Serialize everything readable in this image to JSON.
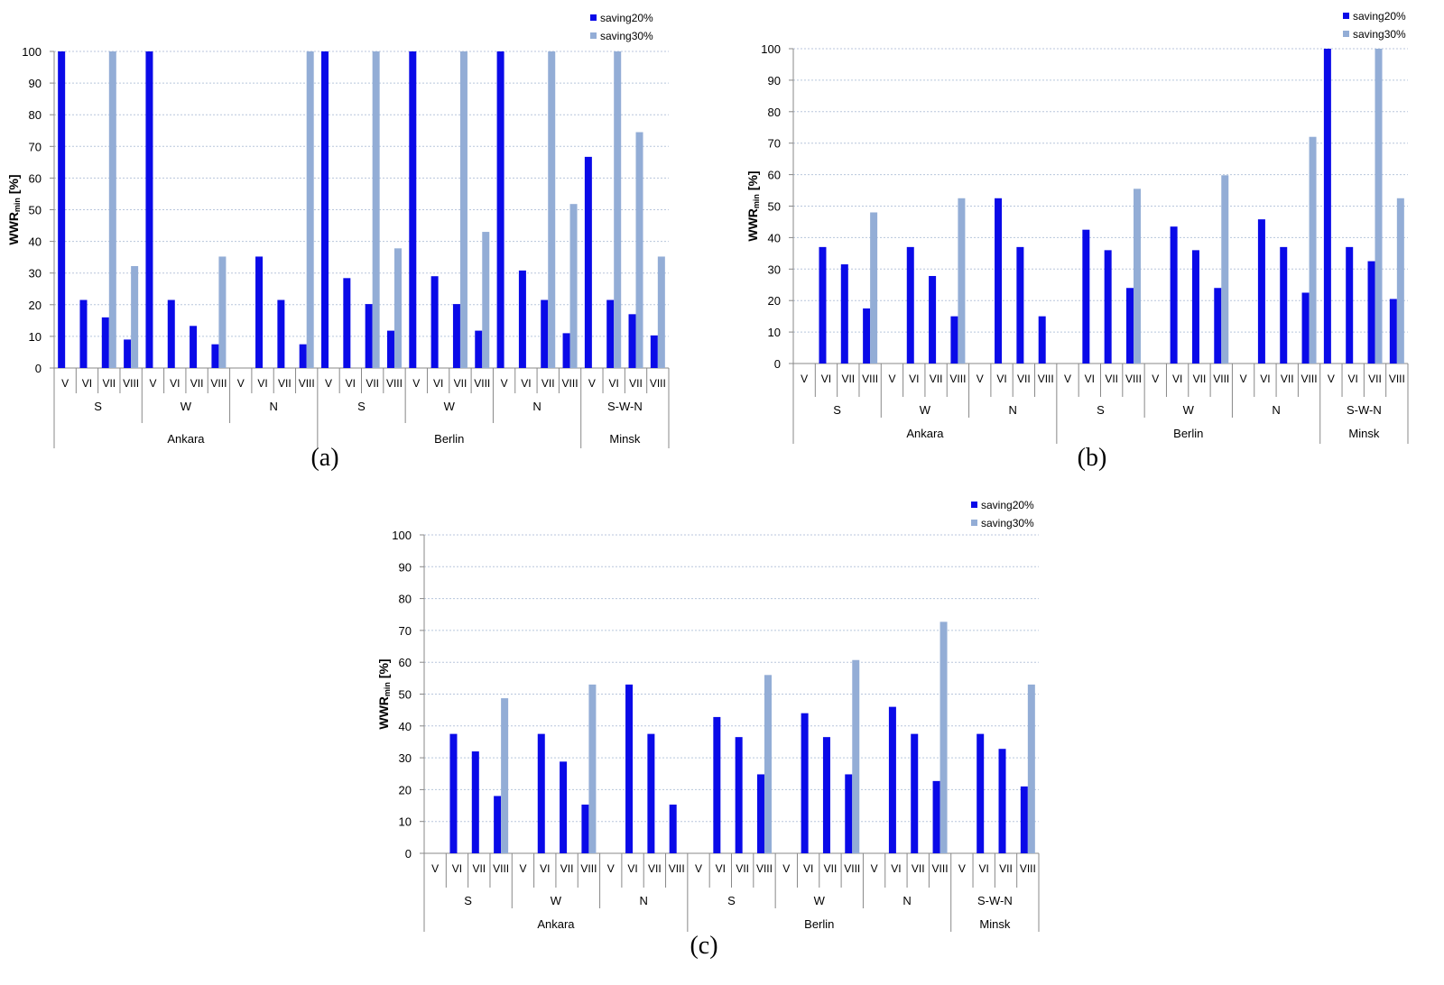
{
  "colors": {
    "saving20": "#0a0ae8",
    "saving30": "#93add6",
    "grid": "#b8c6dc",
    "axis": "#888888"
  },
  "chart_data": [
    {
      "type": "bar",
      "panel_label": "(a)",
      "ylabel": "WWR",
      "ylabel_sub": "min",
      "ylabel_unit": " [%]",
      "ylim": [
        0,
        100
      ],
      "yticks": [
        "0",
        "10",
        "20",
        "30",
        "40",
        "50",
        "60",
        "70",
        "80",
        "90",
        "100"
      ],
      "grid": true,
      "legend_position": "top-right",
      "categories": [
        "V",
        "VI",
        "VII",
        "VIII",
        "V",
        "VI",
        "VII",
        "VIII",
        "V",
        "VI",
        "VII",
        "VIII",
        "V",
        "VI",
        "VII",
        "VIII",
        "V",
        "VI",
        "VII",
        "VIII",
        "V",
        "VI",
        "VII",
        "VIII",
        "V",
        "VI",
        "VII",
        "VIII"
      ],
      "orientation_groups": [
        "S",
        "W",
        "N",
        "S",
        "W",
        "N",
        "S-W-N"
      ],
      "city_groups": [
        {
          "name": "Ankara",
          "span": 3
        },
        {
          "name": "Berlin",
          "span": 3
        },
        {
          "name": "Minsk",
          "span": 1
        }
      ],
      "series": [
        {
          "name": "saving20%",
          "values": [
            100,
            21.5,
            16,
            9,
            100,
            21.5,
            13.3,
            7.5,
            0,
            35.2,
            21.5,
            7.5,
            100,
            28.4,
            20.2,
            11.8,
            100,
            29,
            20.2,
            11.8,
            100,
            30.8,
            21.5,
            11,
            66.7,
            21.5,
            17,
            10.3
          ]
        },
        {
          "name": "saving30%",
          "values": [
            0,
            0,
            100,
            32.2,
            0,
            0,
            0,
            35.2,
            0,
            0,
            0,
            100,
            0,
            0,
            100,
            37.8,
            0,
            0,
            100,
            43,
            0,
            0,
            100,
            51.8,
            0,
            100,
            74.5,
            35.2
          ]
        }
      ]
    },
    {
      "type": "bar",
      "panel_label": "(b)",
      "ylabel": "WWR",
      "ylabel_sub": "min",
      "ylabel_unit": " [%]",
      "ylim": [
        0,
        100
      ],
      "yticks": [
        "0",
        "10",
        "20",
        "30",
        "40",
        "50",
        "60",
        "70",
        "80",
        "90",
        "100"
      ],
      "grid": true,
      "legend_position": "top-right",
      "categories": [
        "V",
        "VI",
        "VII",
        "VIII",
        "V",
        "VI",
        "VII",
        "VIII",
        "V",
        "VI",
        "VII",
        "VIII",
        "V",
        "VI",
        "VII",
        "VIII",
        "V",
        "VI",
        "VII",
        "VIII",
        "V",
        "VI",
        "VII",
        "VIII",
        "V",
        "VI",
        "VII",
        "VIII"
      ],
      "orientation_groups": [
        "S",
        "W",
        "N",
        "S",
        "W",
        "N",
        "S-W-N"
      ],
      "city_groups": [
        {
          "name": "Ankara",
          "span": 3
        },
        {
          "name": "Berlin",
          "span": 3
        },
        {
          "name": "Minsk",
          "span": 1
        }
      ],
      "series": [
        {
          "name": "saving20%",
          "values": [
            0,
            37,
            31.5,
            17.5,
            0,
            37,
            27.8,
            15,
            0,
            52.5,
            37,
            15,
            0,
            42.5,
            36,
            24,
            0,
            43.5,
            36,
            24,
            0,
            45.8,
            37,
            22.5,
            100,
            37,
            32.5,
            20.5
          ]
        },
        {
          "name": "saving30%",
          "values": [
            0,
            0,
            0,
            48,
            0,
            0,
            0,
            52.5,
            0,
            0,
            0,
            0,
            0,
            0,
            0,
            55.5,
            0,
            0,
            0,
            59.8,
            0,
            0,
            0,
            72,
            0,
            0,
            100,
            52.5
          ]
        }
      ]
    },
    {
      "type": "bar",
      "panel_label": "(c)",
      "ylabel": "WWR",
      "ylabel_sub": "min",
      "ylabel_unit": " [%]",
      "ylim": [
        0,
        100
      ],
      "yticks": [
        "0",
        "10",
        "20",
        "30",
        "40",
        "50",
        "60",
        "70",
        "80",
        "90",
        "100"
      ],
      "grid": true,
      "legend_position": "top-right",
      "categories": [
        "V",
        "VI",
        "VII",
        "VIII",
        "V",
        "VI",
        "VII",
        "VIII",
        "V",
        "VI",
        "VII",
        "VIII",
        "V",
        "VI",
        "VII",
        "VIII",
        "V",
        "VI",
        "VII",
        "VIII",
        "V",
        "VI",
        "VII",
        "VIII",
        "V",
        "VI",
        "VII",
        "VIII"
      ],
      "orientation_groups": [
        "S",
        "W",
        "N",
        "S",
        "W",
        "N",
        "S-W-N"
      ],
      "city_groups": [
        {
          "name": "Ankara",
          "span": 3
        },
        {
          "name": "Berlin",
          "span": 3
        },
        {
          "name": "Minsk",
          "span": 1
        }
      ],
      "series": [
        {
          "name": "saving20%",
          "values": [
            0,
            37.5,
            32,
            18,
            0,
            37.5,
            28.8,
            15.3,
            0,
            53,
            37.5,
            15.3,
            0,
            42.8,
            36.5,
            24.8,
            0,
            44,
            36.5,
            24.8,
            0,
            46,
            37.5,
            22.7,
            0,
            37.5,
            32.8,
            21
          ]
        },
        {
          "name": "saving30%",
          "values": [
            0,
            0,
            0,
            48.7,
            0,
            0,
            0,
            53,
            0,
            0,
            0,
            0,
            0,
            0,
            0,
            56,
            0,
            0,
            0,
            60.7,
            0,
            0,
            0,
            72.7,
            0,
            0,
            0,
            53
          ]
        }
      ]
    }
  ]
}
